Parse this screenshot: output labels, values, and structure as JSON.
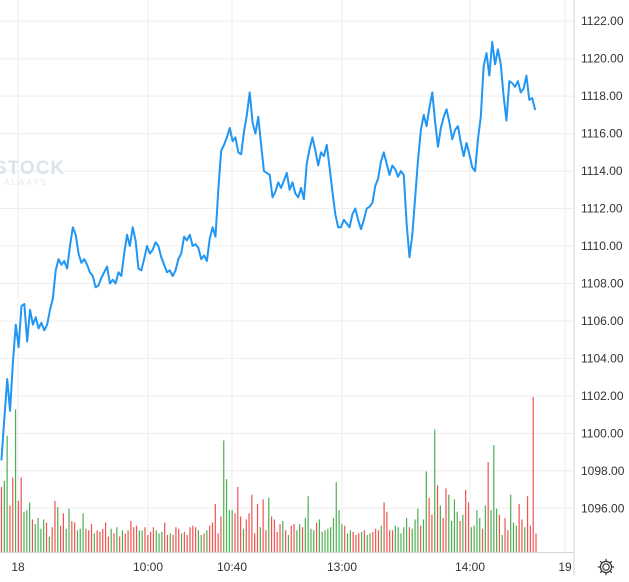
{
  "chart_data": {
    "type": "line",
    "title": "",
    "xlabel": "",
    "ylabel": "",
    "ylim": [
      1095,
      1122.6
    ],
    "y_ticks": [
      1096,
      1098,
      1100,
      1102,
      1104,
      1106,
      1108,
      1110,
      1112,
      1114,
      1116,
      1118,
      1120,
      1122
    ],
    "y_tick_labels": [
      "1096.00",
      "1098.00",
      "1100.00",
      "1102.00",
      "1104.00",
      "1106.00",
      "1108.00",
      "1110.00",
      "1112.00",
      "1114.00",
      "1116.00",
      "1118.00",
      "1120.00",
      "1122.00"
    ],
    "x_range": [
      "18 09:30",
      "19"
    ],
    "x_ticks": [
      {
        "label": "18",
        "time": "09:30"
      },
      {
        "label": "10:00",
        "time": "10:00"
      },
      {
        "label": "10:40",
        "time": "10:40"
      },
      {
        "label": "13:00",
        "time": "13:00"
      },
      {
        "label": "14:00",
        "time": "14:00"
      },
      {
        "label": "19",
        "time": "19"
      }
    ],
    "grid": true,
    "colors": {
      "price_line": "#2196f3",
      "volume_up": "#4caf50",
      "volume_down": "#ef5350",
      "grid": "#eeeeee"
    },
    "series": [
      {
        "type": "line",
        "values": [
          1098.6,
          1100.8,
          1102.9,
          1101.2,
          1103.8,
          1105.8,
          1104.6,
          1106.8,
          1106.9,
          1104.9,
          1106.6,
          1105.8,
          1106.2,
          1105.6,
          1105.9,
          1105.5,
          1105.8,
          1106.6,
          1107.2,
          1108.7,
          1109.3,
          1109.0,
          1109.2,
          1108.8,
          1110.0,
          1111.0,
          1110.6,
          1109.6,
          1109.1,
          1109.3,
          1109.0,
          1108.6,
          1108.4,
          1107.8,
          1107.9,
          1108.3,
          1108.6,
          1108.9,
          1108.0,
          1108.2,
          1108.0,
          1108.6,
          1108.4,
          1109.6,
          1110.6,
          1110.0,
          1111.0,
          1110.3,
          1108.8,
          1108.7,
          1109.3,
          1110.0,
          1109.6,
          1109.8,
          1110.2,
          1110.0,
          1109.4,
          1109.0,
          1108.6,
          1108.7,
          1108.4,
          1108.7,
          1109.3,
          1109.6,
          1110.5,
          1110.3,
          1110.6,
          1110.0,
          1110.1,
          1109.9,
          1109.3,
          1109.5,
          1109.2,
          1110.4,
          1111.0,
          1110.5,
          1113.0,
          1115.1,
          1115.4,
          1115.8,
          1116.3,
          1115.6,
          1115.8,
          1115.0,
          1114.9,
          1116.1,
          1117.0,
          1118.2,
          1116.6,
          1116.0,
          1116.9,
          1115.4,
          1114.0,
          1113.9,
          1113.8,
          1112.6,
          1112.9,
          1113.4,
          1113.1,
          1113.5,
          1113.9,
          1113.0,
          1113.4,
          1112.8,
          1112.6,
          1113.1,
          1112.5,
          1114.4,
          1115.2,
          1115.8,
          1115.1,
          1114.3,
          1115.0,
          1114.8,
          1115.4,
          1114.2,
          1112.9,
          1111.7,
          1111.0,
          1111.0,
          1111.4,
          1111.2,
          1111.0,
          1111.7,
          1112.0,
          1111.4,
          1110.9,
          1111.4,
          1112.0,
          1112.1,
          1112.3,
          1113.2,
          1113.6,
          1114.5,
          1115.0,
          1114.4,
          1113.8,
          1114.3,
          1114.1,
          1113.7,
          1114.0,
          1113.8,
          1111.2,
          1109.4,
          1110.6,
          1112.6,
          1114.6,
          1116.2,
          1117.0,
          1116.4,
          1117.4,
          1118.2,
          1116.6,
          1115.3,
          1116.3,
          1116.9,
          1117.3,
          1116.6,
          1115.7,
          1116.2,
          1116.4,
          1115.5,
          1114.8,
          1115.5,
          1114.9,
          1114.2,
          1114.0,
          1115.7,
          1116.9,
          1119.6,
          1120.3,
          1119.1,
          1120.9,
          1119.7,
          1120.5,
          1119.7,
          1118.0,
          1116.7,
          1118.8,
          1118.7,
          1118.5,
          1118.8,
          1118.2,
          1118.4,
          1119.1,
          1117.8,
          1117.9,
          1117.3
        ]
      },
      {
        "type": "volume_bar",
        "values": [
          0.42,
          0.46,
          0.75,
          0.3,
          0.48,
          0.92,
          0.33,
          0.48,
          0.26,
          0.27,
          0.32,
          0.21,
          0.18,
          0.22,
          0.15,
          0.21,
          0.19,
          0.1,
          0.16,
          0.33,
          0.29,
          0.17,
          0.25,
          0.15,
          0.28,
          0.2,
          0.19,
          0.14,
          0.15,
          0.25,
          0.15,
          0.14,
          0.18,
          0.12,
          0.14,
          0.13,
          0.15,
          0.19,
          0.1,
          0.15,
          0.12,
          0.16,
          0.1,
          0.14,
          0.12,
          0.14,
          0.2,
          0.16,
          0.17,
          0.14,
          0.14,
          0.16,
          0.11,
          0.13,
          0.16,
          0.14,
          0.12,
          0.13,
          0.19,
          0.11,
          0.12,
          0.11,
          0.16,
          0.15,
          0.12,
          0.13,
          0.11,
          0.16,
          0.17,
          0.16,
          0.14,
          0.11,
          0.12,
          0.14,
          0.17,
          0.19,
          0.31,
          0.12,
          0.23,
          0.72,
          0.47,
          0.27,
          0.27,
          0.25,
          0.42,
          0.23,
          0.15,
          0.21,
          0.25,
          0.37,
          0.12,
          0.31,
          0.16,
          0.34,
          0.14,
          0.35,
          0.23,
          0.21,
          0.13,
          0.18,
          0.2,
          0.14,
          0.11,
          0.17,
          0.18,
          0.14,
          0.18,
          0.16,
          0.22,
          0.36,
          0.15,
          0.14,
          0.19,
          0.21,
          0.13,
          0.14,
          0.15,
          0.16,
          0.22,
          0.45,
          0.27,
          0.18,
          0.17,
          0.12,
          0.14,
          0.13,
          0.11,
          0.12,
          0.13,
          0.14,
          0.11,
          0.12,
          0.13,
          0.15,
          0.14,
          0.17,
          0.32,
          0.26,
          0.14,
          0.14,
          0.17,
          0.16,
          0.12,
          0.16,
          0.22,
          0.16,
          0.15,
          0.21,
          0.28,
          0.17,
          0.21,
          0.52,
          0.35,
          0.24,
          0.79,
          0.43,
          0.3,
          0.22,
          0.41,
          0.37,
          0.2,
          0.34,
          0.26,
          0.2,
          0.24,
          0.4,
          0.32,
          0.16,
          0.17,
          0.27,
          0.22,
          0.15,
          0.3,
          0.58,
          0.27,
          0.69,
          0.28,
          0.24,
          0.11,
          0.22,
          0.14,
          0.37,
          0.19,
          0.17,
          0.31,
          0.21,
          0.16,
          0.36,
          0.17,
          1.0,
          0.12
        ],
        "colors": [
          "down",
          "up",
          "up",
          "down",
          "down",
          "up",
          "down",
          "down",
          "up",
          "up",
          "up",
          "down",
          "up",
          "up",
          "up",
          "up",
          "down",
          "up",
          "down",
          "down",
          "up",
          "down",
          "down",
          "up",
          "up",
          "down",
          "down",
          "up",
          "up",
          "up",
          "down",
          "down",
          "down",
          "up",
          "down",
          "down",
          "down",
          "down",
          "down",
          "up",
          "down",
          "up",
          "down",
          "up",
          "down",
          "down",
          "down",
          "down",
          "down",
          "up",
          "up",
          "down",
          "down",
          "down",
          "down",
          "up",
          "up",
          "up",
          "down",
          "down",
          "up",
          "down",
          "down",
          "down",
          "up",
          "down",
          "down",
          "down",
          "down",
          "down",
          "up",
          "up",
          "down",
          "up",
          "down",
          "down",
          "down",
          "down",
          "down",
          "up",
          "up",
          "up",
          "up",
          "down",
          "down",
          "down",
          "up",
          "down",
          "down",
          "down",
          "down",
          "down",
          "up",
          "down",
          "down",
          "up",
          "down",
          "down",
          "down",
          "down",
          "up",
          "down",
          "up",
          "down",
          "down",
          "up",
          "up",
          "down",
          "up",
          "up",
          "up",
          "up",
          "down",
          "up",
          "up",
          "up",
          "up",
          "up",
          "up",
          "up",
          "up",
          "up",
          "down",
          "up",
          "up",
          "down",
          "down",
          "down",
          "up",
          "down",
          "up",
          "up",
          "down",
          "down",
          "down",
          "up",
          "down",
          "down",
          "down",
          "down",
          "up",
          "up",
          "up",
          "up",
          "up",
          "down",
          "up",
          "up",
          "up",
          "down",
          "up",
          "up",
          "down",
          "down",
          "up",
          "down",
          "up",
          "down",
          "down",
          "up",
          "up",
          "up",
          "up",
          "down",
          "up",
          "down",
          "down",
          "up",
          "up",
          "up",
          "up",
          "down",
          "up",
          "down",
          "up",
          "up",
          "up",
          "down",
          "up",
          "down",
          "down",
          "up",
          "up",
          "up",
          "down",
          "down",
          "up",
          "down"
        ]
      }
    ]
  },
  "watermark": {
    "main": "STOCK",
    "sub": "ALWAYS"
  },
  "icons": {
    "settings": "gear-icon"
  }
}
